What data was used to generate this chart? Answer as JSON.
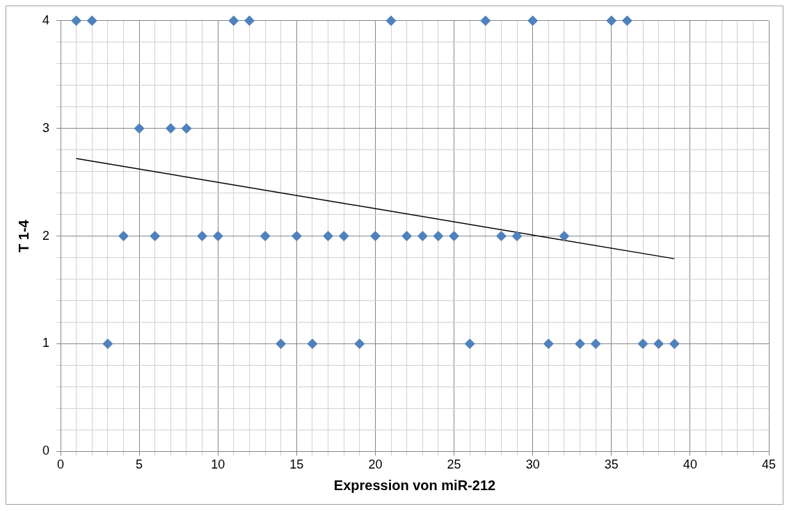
{
  "chart_data": {
    "type": "scatter",
    "xlabel": "Expression von miR-212",
    "ylabel": "T 1-4",
    "xlim": [
      0,
      45
    ],
    "ylim": [
      0,
      4
    ],
    "xticks": [
      0,
      {
        "value": 1,
        "label": null
      },
      {
        "value": 2,
        "label": null
      },
      {
        "value": 3,
        "label": null
      },
      {
        "value": 4,
        "label": null
      },
      5,
      {
        "value": 6,
        "label": null
      },
      {
        "value": 7,
        "label": null
      },
      {
        "value": 8,
        "label": null
      },
      {
        "value": 9,
        "label": null
      },
      10,
      {
        "value": 11,
        "label": null
      },
      {
        "value": 12,
        "label": null
      },
      {
        "value": 13,
        "label": null
      },
      {
        "value": 14,
        "label": null
      },
      15,
      {
        "value": 16,
        "label": null
      },
      {
        "value": 17,
        "label": null
      },
      {
        "value": 18,
        "label": null
      },
      {
        "value": 19,
        "label": null
      },
      20,
      {
        "value": 21,
        "label": null
      },
      {
        "value": 22,
        "label": null
      },
      {
        "value": 23,
        "label": null
      },
      {
        "value": 24,
        "label": null
      },
      25,
      {
        "value": 26,
        "label": null
      },
      {
        "value": 27,
        "label": null
      },
      {
        "value": 28,
        "label": null
      },
      {
        "value": 29,
        "label": null
      },
      30,
      {
        "value": 31,
        "label": null
      },
      {
        "value": 32,
        "label": null
      },
      {
        "value": 33,
        "label": null
      },
      {
        "value": 34,
        "label": null
      },
      35,
      {
        "value": 36,
        "label": null
      },
      {
        "value": 37,
        "label": null
      },
      {
        "value": 38,
        "label": null
      },
      {
        "value": 39,
        "label": null
      },
      40,
      {
        "value": 41,
        "label": null
      },
      {
        "value": 42,
        "label": null
      },
      {
        "value": 43,
        "label": null
      },
      {
        "value": 44,
        "label": null
      },
      45
    ],
    "yticks": [
      0,
      {
        "value": 0.2,
        "label": null
      },
      {
        "value": 0.4,
        "label": null
      },
      {
        "value": 0.6,
        "label": null
      },
      {
        "value": 0.8,
        "label": null
      },
      1,
      {
        "value": 1.2,
        "label": null
      },
      {
        "value": 1.4,
        "label": null
      },
      {
        "value": 1.6,
        "label": null
      },
      {
        "value": 1.8,
        "label": null
      },
      2,
      {
        "value": 2.2,
        "label": null
      },
      {
        "value": 2.4,
        "label": null
      },
      {
        "value": 2.6,
        "label": null
      },
      {
        "value": 2.8,
        "label": null
      },
      3,
      {
        "value": 3.2,
        "label": null
      },
      {
        "value": 3.4,
        "label": null
      },
      {
        "value": 3.6,
        "label": null
      },
      {
        "value": 3.8,
        "label": null
      },
      4
    ],
    "grid": true,
    "legend": false,
    "series": [
      {
        "color": "#4f81bd",
        "marker": "diamond",
        "x": [
          1,
          2,
          3,
          4,
          5,
          6,
          7,
          8,
          9,
          10,
          11,
          12,
          13,
          14,
          15,
          16,
          17,
          18,
          19,
          20,
          21,
          22,
          23,
          24,
          25,
          26,
          27,
          28,
          29,
          30,
          31,
          32,
          33,
          34,
          35,
          36,
          37,
          38,
          39
        ],
        "values": [
          4,
          4,
          1,
          2,
          3,
          2,
          3,
          3,
          2,
          2,
          4,
          4,
          2,
          1,
          2,
          1,
          2,
          2,
          1,
          2,
          4,
          2,
          2,
          2,
          2,
          1,
          4,
          2,
          2,
          4,
          1,
          2,
          1,
          1,
          4,
          4,
          1,
          1,
          1
        ]
      },
      {
        "type": "line",
        "color": "#000000",
        "marker": "none",
        "line_style": "solid",
        "x": [
          1,
          39
        ],
        "values": [
          2.72,
          1.79
        ]
      }
    ]
  }
}
